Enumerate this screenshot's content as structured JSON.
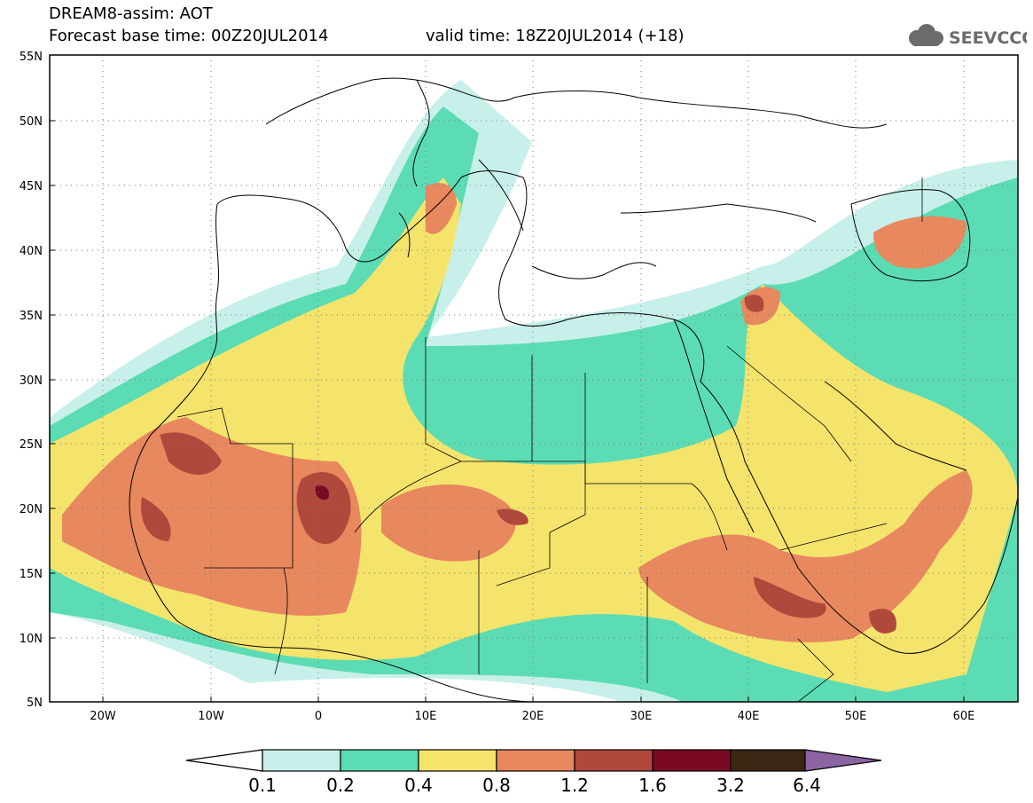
{
  "header": {
    "title": "DREAM8-assim: AOT",
    "base_time": "Forecast base time: 00Z20JUL2014",
    "valid_time": "valid time: 18Z20JUL2014 (+18)",
    "logo_text": "SEEVCCC"
  },
  "axes": {
    "lat_labels": [
      "55N",
      "50N",
      "45N",
      "40N",
      "35N",
      "30N",
      "25N",
      "20N",
      "15N",
      "10N",
      "5N"
    ],
    "lon_labels": [
      "20W",
      "10W",
      "0",
      "10E",
      "20E",
      "30E",
      "40E",
      "50E",
      "60E"
    ]
  },
  "colorbar": {
    "labels": [
      "0.1",
      "0.2",
      "0.4",
      "0.8",
      "1.2",
      "1.6",
      "3.2",
      "6.4"
    ],
    "colors": [
      "#c8f0ea",
      "#5cdcb4",
      "#f4e46c",
      "#e8885e",
      "#b0483c",
      "#7a0a24",
      "#3e2614",
      "#8c64a4"
    ]
  },
  "colors": {
    "background": "#ffffff",
    "coast": "#000000",
    "grid": "#555555"
  }
}
